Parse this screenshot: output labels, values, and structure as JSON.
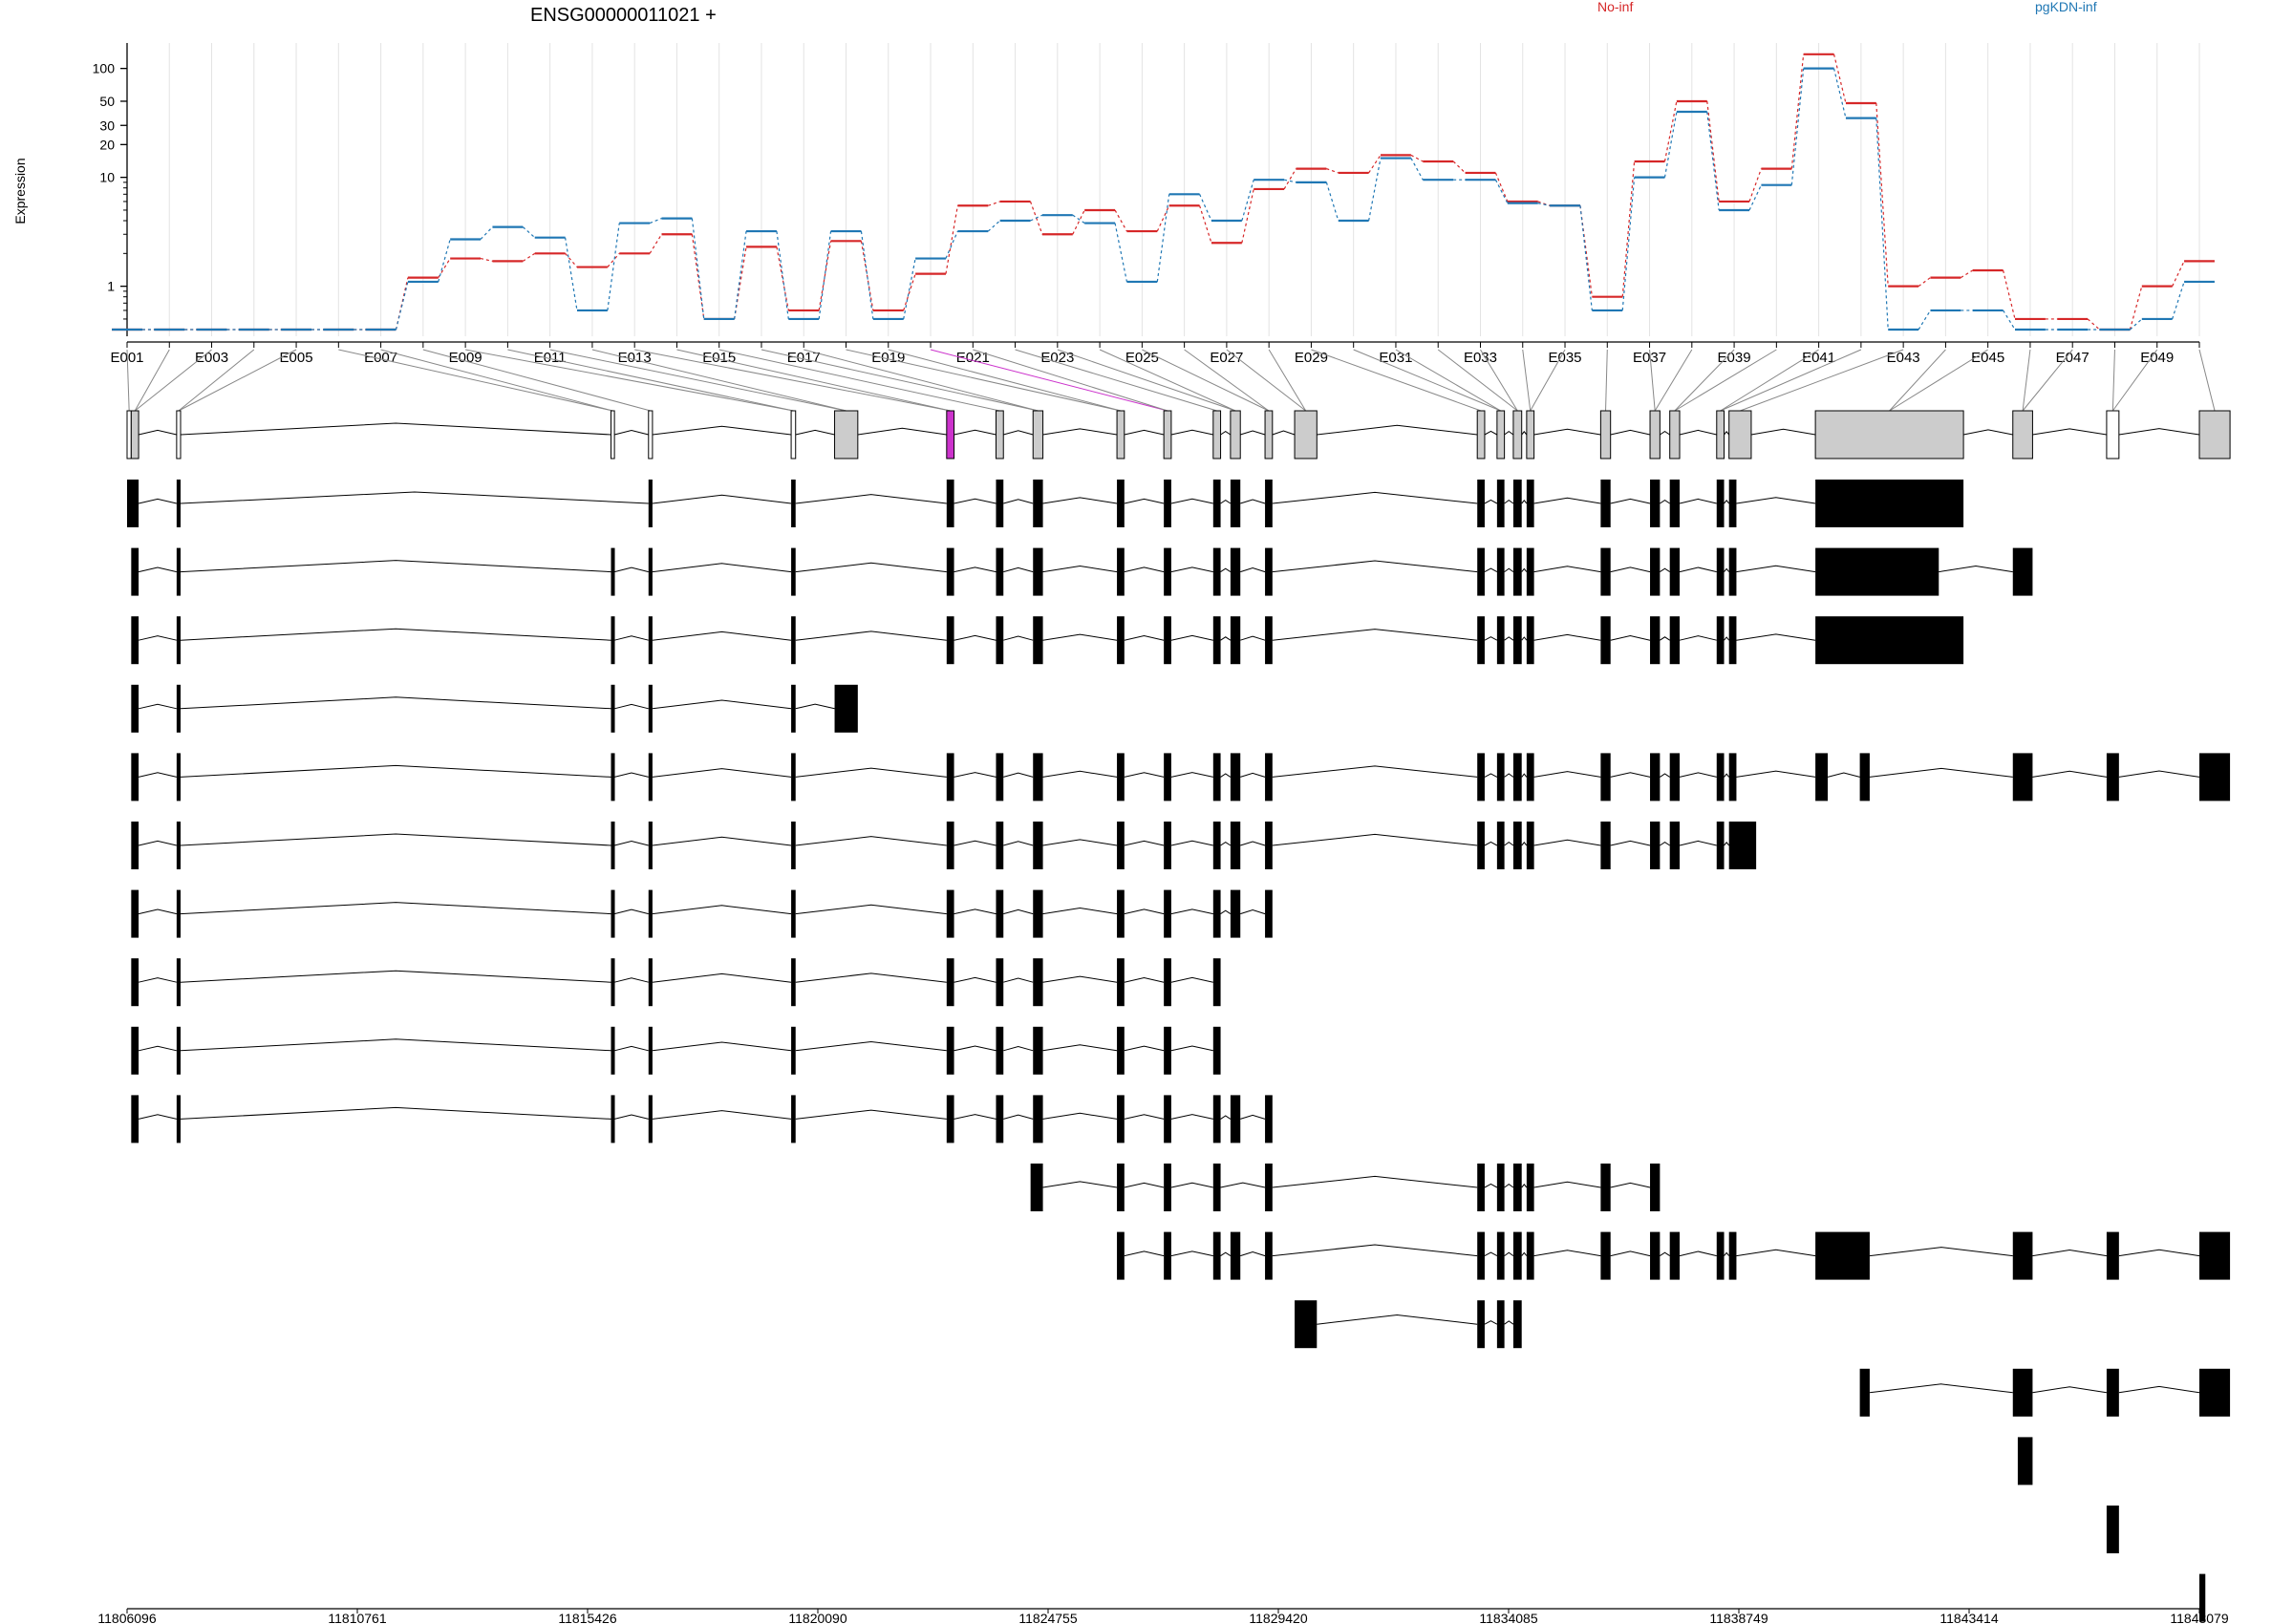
{
  "chart_data": {
    "type": "line",
    "title": "ENSG00000011021 +",
    "ylabel": "Expression",
    "yscale": "log",
    "ylim": [
      0.4,
      140
    ],
    "yticks": [
      1,
      10,
      20,
      30,
      50,
      100
    ],
    "series": [
      {
        "name": "No-inf",
        "color": "#d62728",
        "values": [
          0.4,
          0.4,
          0.4,
          0.4,
          0.4,
          0.4,
          0.4,
          1.2,
          1.8,
          1.7,
          2.0,
          1.5,
          2.0,
          3.0,
          0.5,
          2.3,
          0.6,
          2.6,
          0.6,
          1.3,
          5.5,
          6.0,
          3.0,
          5.0,
          3.2,
          5.5,
          2.5,
          7.8,
          12.0,
          11.0,
          16.0,
          14.0,
          11.0,
          6.0,
          5.5,
          0.8,
          14.0,
          50.0,
          6.0,
          12.0,
          135.0,
          48.0,
          1.0,
          1.2,
          1.4,
          0.5,
          0.5,
          0.4,
          1.0,
          1.7
        ]
      },
      {
        "name": "pgKDN-inf",
        "color": "#1f77b4",
        "values": [
          0.4,
          0.4,
          0.4,
          0.4,
          0.4,
          0.4,
          0.4,
          1.1,
          2.7,
          3.5,
          2.8,
          0.6,
          3.8,
          4.2,
          0.5,
          3.2,
          0.5,
          3.2,
          0.5,
          1.8,
          3.2,
          4.0,
          4.5,
          3.8,
          1.1,
          7.0,
          4.0,
          9.5,
          9.0,
          4.0,
          15.0,
          9.5,
          9.5,
          5.8,
          5.5,
          0.6,
          10.0,
          40.0,
          5.0,
          8.5,
          100.0,
          35.0,
          0.4,
          0.6,
          0.6,
          0.4,
          0.4,
          0.4,
          0.5,
          1.1
        ]
      }
    ],
    "exon_labels": [
      "E001",
      "E003",
      "E005",
      "E007",
      "E009",
      "E011",
      "E013",
      "E015",
      "E017",
      "E019",
      "E021",
      "E023",
      "E025",
      "E027",
      "E029",
      "E031",
      "E033",
      "E035",
      "E037",
      "E039",
      "E041",
      "E043",
      "E045",
      "E047",
      "E049"
    ],
    "exon_count": 50,
    "highlight_exon": 19,
    "coordinate_ticks": [
      "11806096",
      "11810761",
      "11815426",
      "11820090",
      "11824755",
      "11829420",
      "11834085",
      "11838749",
      "11843414",
      "11848079"
    ],
    "coordinate_range": [
      11806096,
      11848079
    ],
    "gene_model_exons": [
      {
        "s": 11806096,
        "e": 11806180,
        "c": "white"
      },
      {
        "s": 11806180,
        "e": 11806330,
        "c": "grey"
      },
      {
        "s": 11807100,
        "e": 11807180,
        "c": "white"
      },
      {
        "s": 11815900,
        "e": 11815970,
        "c": "white"
      },
      {
        "s": 11816660,
        "e": 11816740,
        "c": "white"
      },
      {
        "s": 11819550,
        "e": 11819640,
        "c": "white"
      },
      {
        "s": 11820430,
        "e": 11820900,
        "c": "grey"
      },
      {
        "s": 11822700,
        "e": 11822850,
        "c": "magenta"
      },
      {
        "s": 11823700,
        "e": 11823850,
        "c": "grey"
      },
      {
        "s": 11824450,
        "e": 11824650,
        "c": "grey"
      },
      {
        "s": 11826150,
        "e": 11826300,
        "c": "grey"
      },
      {
        "s": 11827100,
        "e": 11827250,
        "c": "grey"
      },
      {
        "s": 11828100,
        "e": 11828250,
        "c": "grey"
      },
      {
        "s": 11828450,
        "e": 11828650,
        "c": "grey"
      },
      {
        "s": 11829150,
        "e": 11829300,
        "c": "grey"
      },
      {
        "s": 11829750,
        "e": 11830200,
        "c": "grey"
      },
      {
        "s": 11833450,
        "e": 11833600,
        "c": "grey"
      },
      {
        "s": 11833850,
        "e": 11834000,
        "c": "grey"
      },
      {
        "s": 11834180,
        "e": 11834350,
        "c": "grey"
      },
      {
        "s": 11834450,
        "e": 11834600,
        "c": "grey"
      },
      {
        "s": 11835950,
        "e": 11836150,
        "c": "grey"
      },
      {
        "s": 11836950,
        "e": 11837150,
        "c": "grey"
      },
      {
        "s": 11837350,
        "e": 11837550,
        "c": "grey"
      },
      {
        "s": 11838300,
        "e": 11838450,
        "c": "grey"
      },
      {
        "s": 11838550,
        "e": 11839000,
        "c": "grey"
      },
      {
        "s": 11840300,
        "e": 11843300,
        "c": "grey"
      },
      {
        "s": 11844300,
        "e": 11844700,
        "c": "grey"
      },
      {
        "s": 11846200,
        "e": 11846450,
        "c": "white"
      },
      {
        "s": 11848079,
        "e": 11848700,
        "c": "grey"
      }
    ],
    "transcripts": [
      [
        [
          11806096,
          11806330
        ],
        [
          11807100,
          11807180
        ],
        [
          11816660,
          11816740
        ],
        [
          11819550,
          11819640
        ],
        [
          11822700,
          11822850
        ],
        [
          11823700,
          11823850
        ],
        [
          11824450,
          11824650
        ],
        [
          11826150,
          11826300
        ],
        [
          11827100,
          11827250
        ],
        [
          11828100,
          11828250
        ],
        [
          11828450,
          11828650
        ],
        [
          11829150,
          11829300
        ],
        [
          11833450,
          11833600
        ],
        [
          11833850,
          11834000
        ],
        [
          11834180,
          11834350
        ],
        [
          11834450,
          11834600
        ],
        [
          11835950,
          11836150
        ],
        [
          11836950,
          11837150
        ],
        [
          11837350,
          11837550
        ],
        [
          11838300,
          11838450
        ],
        [
          11838550,
          11838700
        ],
        [
          11840300,
          11843300
        ]
      ],
      [
        [
          11806180,
          11806330
        ],
        [
          11807100,
          11807180
        ],
        [
          11815900,
          11815970
        ],
        [
          11816660,
          11816740
        ],
        [
          11819550,
          11819640
        ],
        [
          11822700,
          11822850
        ],
        [
          11823700,
          11823850
        ],
        [
          11824450,
          11824650
        ],
        [
          11826150,
          11826300
        ],
        [
          11827100,
          11827250
        ],
        [
          11828100,
          11828250
        ],
        [
          11828450,
          11828650
        ],
        [
          11829150,
          11829300
        ],
        [
          11833450,
          11833600
        ],
        [
          11833850,
          11834000
        ],
        [
          11834180,
          11834350
        ],
        [
          11834450,
          11834600
        ],
        [
          11835950,
          11836150
        ],
        [
          11836950,
          11837150
        ],
        [
          11837350,
          11837550
        ],
        [
          11838300,
          11838450
        ],
        [
          11838550,
          11838700
        ],
        [
          11840300,
          11842800
        ],
        [
          11844300,
          11844700
        ]
      ],
      [
        [
          11806180,
          11806330
        ],
        [
          11807100,
          11807180
        ],
        [
          11815900,
          11815970
        ],
        [
          11816660,
          11816740
        ],
        [
          11819550,
          11819640
        ],
        [
          11822700,
          11822850
        ],
        [
          11823700,
          11823850
        ],
        [
          11824450,
          11824650
        ],
        [
          11826150,
          11826300
        ],
        [
          11827100,
          11827250
        ],
        [
          11828100,
          11828250
        ],
        [
          11828450,
          11828650
        ],
        [
          11829150,
          11829300
        ],
        [
          11833450,
          11833600
        ],
        [
          11833850,
          11834000
        ],
        [
          11834180,
          11834350
        ],
        [
          11834450,
          11834600
        ],
        [
          11835950,
          11836150
        ],
        [
          11836950,
          11837150
        ],
        [
          11837350,
          11837550
        ],
        [
          11838300,
          11838450
        ],
        [
          11838550,
          11838700
        ],
        [
          11840300,
          11843300
        ]
      ],
      [
        [
          11806180,
          11806330
        ],
        [
          11807100,
          11807180
        ],
        [
          11815900,
          11815970
        ],
        [
          11816660,
          11816740
        ],
        [
          11819550,
          11819640
        ],
        [
          11820430,
          11820900
        ]
      ],
      [
        [
          11806180,
          11806330
        ],
        [
          11807100,
          11807180
        ],
        [
          11815900,
          11815970
        ],
        [
          11816660,
          11816740
        ],
        [
          11819550,
          11819640
        ],
        [
          11822700,
          11822850
        ],
        [
          11823700,
          11823850
        ],
        [
          11824450,
          11824650
        ],
        [
          11826150,
          11826300
        ],
        [
          11827100,
          11827250
        ],
        [
          11828100,
          11828250
        ],
        [
          11828450,
          11828650
        ],
        [
          11829150,
          11829300
        ],
        [
          11833450,
          11833600
        ],
        [
          11833850,
          11834000
        ],
        [
          11834180,
          11834350
        ],
        [
          11834450,
          11834600
        ],
        [
          11835950,
          11836150
        ],
        [
          11836950,
          11837150
        ],
        [
          11837350,
          11837550
        ],
        [
          11838300,
          11838450
        ],
        [
          11838550,
          11838700
        ],
        [
          11840300,
          11840550
        ],
        [
          11841200,
          11841400
        ],
        [
          11844300,
          11844700
        ],
        [
          11846200,
          11846450
        ],
        [
          11848079,
          11848700
        ]
      ],
      [
        [
          11806180,
          11806330
        ],
        [
          11807100,
          11807180
        ],
        [
          11815900,
          11815970
        ],
        [
          11816660,
          11816740
        ],
        [
          11819550,
          11819640
        ],
        [
          11822700,
          11822850
        ],
        [
          11823700,
          11823850
        ],
        [
          11824450,
          11824650
        ],
        [
          11826150,
          11826300
        ],
        [
          11827100,
          11827250
        ],
        [
          11828100,
          11828250
        ],
        [
          11828450,
          11828650
        ],
        [
          11829150,
          11829300
        ],
        [
          11833450,
          11833600
        ],
        [
          11833850,
          11834000
        ],
        [
          11834180,
          11834350
        ],
        [
          11834450,
          11834600
        ],
        [
          11835950,
          11836150
        ],
        [
          11836950,
          11837150
        ],
        [
          11837350,
          11837550
        ],
        [
          11838300,
          11838450
        ],
        [
          11838550,
          11839100
        ]
      ],
      [
        [
          11806180,
          11806330
        ],
        [
          11807100,
          11807180
        ],
        [
          11815900,
          11815970
        ],
        [
          11816660,
          11816740
        ],
        [
          11819550,
          11819640
        ],
        [
          11822700,
          11822850
        ],
        [
          11823700,
          11823850
        ],
        [
          11824450,
          11824650
        ],
        [
          11826150,
          11826300
        ],
        [
          11827100,
          11827250
        ],
        [
          11828100,
          11828250
        ],
        [
          11828450,
          11828650
        ],
        [
          11829150,
          11829300
        ]
      ],
      [
        [
          11806180,
          11806330
        ],
        [
          11807100,
          11807180
        ],
        [
          11815900,
          11815970
        ],
        [
          11816660,
          11816740
        ],
        [
          11819550,
          11819640
        ],
        [
          11822700,
          11822850
        ],
        [
          11823700,
          11823850
        ],
        [
          11824450,
          11824650
        ],
        [
          11826150,
          11826300
        ],
        [
          11827100,
          11827250
        ],
        [
          11828100,
          11828250
        ]
      ],
      [
        [
          11806180,
          11806330
        ],
        [
          11807100,
          11807180
        ],
        [
          11815900,
          11815970
        ],
        [
          11816660,
          11816740
        ],
        [
          11819550,
          11819640
        ],
        [
          11822700,
          11822850
        ],
        [
          11823700,
          11823850
        ],
        [
          11824450,
          11824650
        ],
        [
          11826150,
          11826300
        ],
        [
          11827100,
          11827250
        ],
        [
          11828100,
          11828250
        ]
      ],
      [
        [
          11806180,
          11806330
        ],
        [
          11807100,
          11807180
        ],
        [
          11815900,
          11815970
        ],
        [
          11816660,
          11816740
        ],
        [
          11819550,
          11819640
        ],
        [
          11822700,
          11822850
        ],
        [
          11823700,
          11823850
        ],
        [
          11824450,
          11824650
        ],
        [
          11826150,
          11826300
        ],
        [
          11827100,
          11827250
        ],
        [
          11828100,
          11828250
        ],
        [
          11828450,
          11828650
        ],
        [
          11829150,
          11829300
        ]
      ],
      [
        [
          11824400,
          11824650
        ],
        [
          11826150,
          11826300
        ],
        [
          11827100,
          11827250
        ],
        [
          11828100,
          11828250
        ],
        [
          11829150,
          11829300
        ],
        [
          11833450,
          11833600
        ],
        [
          11833850,
          11834000
        ],
        [
          11834180,
          11834350
        ],
        [
          11834450,
          11834600
        ],
        [
          11835950,
          11836150
        ],
        [
          11836950,
          11837150
        ]
      ],
      [
        [
          11826150,
          11826300
        ],
        [
          11827100,
          11827250
        ],
        [
          11828100,
          11828250
        ],
        [
          11828450,
          11828650
        ],
        [
          11829150,
          11829300
        ],
        [
          11833450,
          11833600
        ],
        [
          11833850,
          11834000
        ],
        [
          11834180,
          11834350
        ],
        [
          11834450,
          11834600
        ],
        [
          11835950,
          11836150
        ],
        [
          11836950,
          11837150
        ],
        [
          11837350,
          11837550
        ],
        [
          11838300,
          11838450
        ],
        [
          11838550,
          11838700
        ],
        [
          11840300,
          11841400
        ],
        [
          11844300,
          11844700
        ],
        [
          11846200,
          11846450
        ],
        [
          11848079,
          11848700
        ]
      ],
      [
        [
          11829750,
          11830200
        ],
        [
          11833450,
          11833600
        ],
        [
          11833850,
          11834000
        ],
        [
          11834180,
          11834350
        ]
      ],
      [
        [
          11841200,
          11841400
        ],
        [
          11844300,
          11844700
        ],
        [
          11846200,
          11846450
        ],
        [
          11848079,
          11848700
        ]
      ],
      [
        [
          11844400,
          11844700
        ]
      ],
      [
        [
          11846200,
          11846450
        ]
      ],
      [
        [
          11848079,
          11848200
        ]
      ]
    ]
  }
}
